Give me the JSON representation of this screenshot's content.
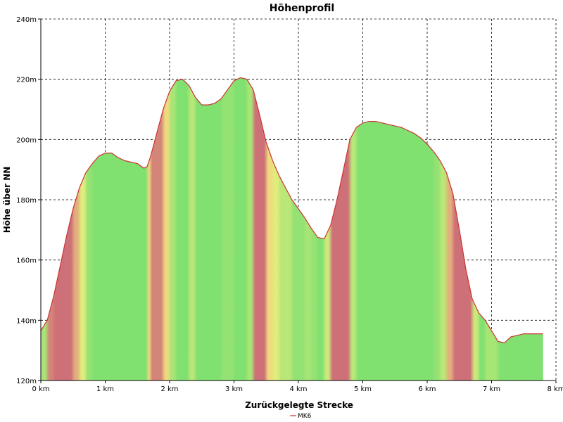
{
  "chart_data": {
    "type": "area",
    "title": "Höhenprofil",
    "xlabel": "Zurückgelegte Strecke",
    "ylabel": "Höhe über NN",
    "xlim": [
      0,
      8
    ],
    "ylim": [
      120,
      240
    ],
    "x_ticks": [
      0,
      1,
      2,
      3,
      4,
      5,
      6,
      7,
      8
    ],
    "x_tick_labels": [
      "0 km",
      "1 km",
      "2 km",
      "3 km",
      "4 km",
      "5 km",
      "6 km",
      "7 km",
      "8 km"
    ],
    "y_ticks": [
      120,
      140,
      160,
      180,
      200,
      220,
      240
    ],
    "y_tick_labels": [
      "120m",
      "140m",
      "160m",
      "180m",
      "200m",
      "220m",
      "240m"
    ],
    "grid": true,
    "legend_position": "bottom-center",
    "series": [
      {
        "name": "MK6",
        "color": "#cc3333",
        "x": [
          0,
          0.1,
          0.2,
          0.3,
          0.4,
          0.5,
          0.6,
          0.7,
          0.8,
          0.9,
          1.0,
          1.1,
          1.2,
          1.3,
          1.4,
          1.5,
          1.6,
          1.65,
          1.7,
          1.8,
          1.9,
          2.0,
          2.1,
          2.2,
          2.3,
          2.4,
          2.5,
          2.6,
          2.7,
          2.8,
          2.9,
          3.0,
          3.1,
          3.2,
          3.3,
          3.4,
          3.5,
          3.6,
          3.7,
          3.8,
          3.9,
          4.0,
          4.1,
          4.2,
          4.3,
          4.4,
          4.5,
          4.6,
          4.7,
          4.8,
          4.9,
          5.0,
          5.1,
          5.2,
          5.3,
          5.4,
          5.5,
          5.6,
          5.7,
          5.8,
          5.9,
          6.0,
          6.1,
          6.2,
          6.3,
          6.4,
          6.5,
          6.6,
          6.7,
          6.8,
          6.9,
          7.0,
          7.1,
          7.2,
          7.3,
          7.4,
          7.5,
          7.6,
          7.7,
          7.8
        ],
        "values": [
          136.5,
          140,
          148,
          158,
          168,
          177,
          184,
          189,
          192,
          194.5,
          195.5,
          195.5,
          194,
          193,
          192.5,
          192,
          190.5,
          191,
          194,
          202,
          210,
          216,
          219.5,
          220,
          218,
          214,
          211.5,
          211.5,
          212,
          213.5,
          216.5,
          219.5,
          220.5,
          220,
          216.5,
          208,
          199,
          193,
          188,
          184,
          180,
          177,
          174,
          170.5,
          167.5,
          167,
          171.5,
          180,
          190,
          200,
          204,
          205.5,
          206,
          206,
          205.5,
          205,
          204.5,
          204,
          203,
          202,
          200.5,
          198.5,
          196,
          193,
          189,
          182,
          170,
          157,
          147,
          142.5,
          140,
          136.5,
          133,
          132.5,
          134.5,
          135,
          135.5,
          135.5,
          135.5,
          135.5
        ]
      }
    ]
  }
}
